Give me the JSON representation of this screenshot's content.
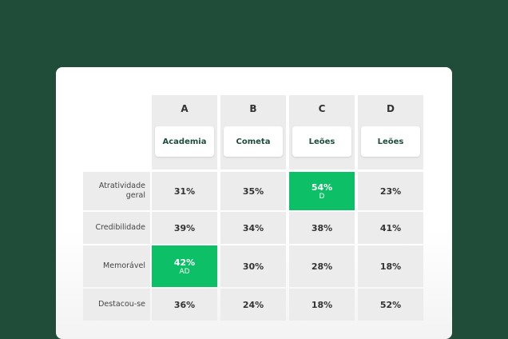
{
  "columns": [
    {
      "letter": "A",
      "name": "Academia"
    },
    {
      "letter": "B",
      "name": "Cometa"
    },
    {
      "letter": "C",
      "name": "Leões"
    },
    {
      "letter": "D",
      "name": "Leões"
    }
  ],
  "rows": [
    {
      "label": "Atratividade geral",
      "cells": [
        {
          "value": "31%",
          "sig": ""
        },
        {
          "value": "35%",
          "sig": ""
        },
        {
          "value": "54%",
          "sig": "D",
          "highlight": true
        },
        {
          "value": "23%",
          "sig": ""
        }
      ]
    },
    {
      "label": "Credibilidade",
      "cells": [
        {
          "value": "39%",
          "sig": ""
        },
        {
          "value": "34%",
          "sig": ""
        },
        {
          "value": "38%",
          "sig": ""
        },
        {
          "value": "41%",
          "sig": ""
        }
      ]
    },
    {
      "label": "Memorável",
      "cells": [
        {
          "value": "42%",
          "sig": "AD",
          "highlight": true
        },
        {
          "value": "30%",
          "sig": ""
        },
        {
          "value": "28%",
          "sig": ""
        },
        {
          "value": "18%",
          "sig": ""
        }
      ]
    },
    {
      "label": "Destacou-se",
      "cells": [
        {
          "value": "36%",
          "sig": ""
        },
        {
          "value": "24%",
          "sig": ""
        },
        {
          "value": "18%",
          "sig": ""
        },
        {
          "value": "52%",
          "sig": ""
        }
      ]
    }
  ],
  "colors": {
    "background": "#1f4d3a",
    "highlight": "#0dbf66",
    "cell": "#ececec"
  }
}
